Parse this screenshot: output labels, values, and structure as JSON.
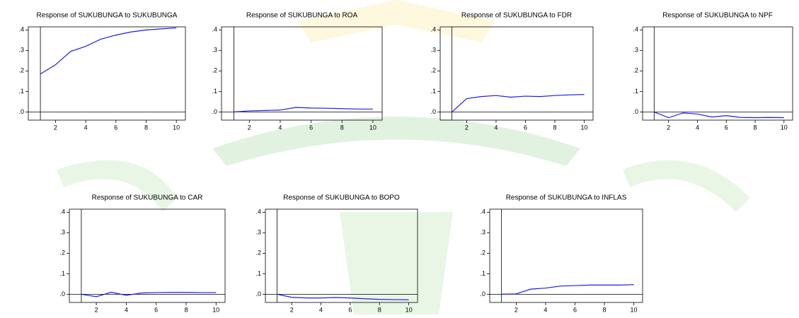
{
  "chart_data": [
    {
      "type": "line",
      "title": "Response of SUKUBUNGA to SUKUBUNGA",
      "x": [
        1,
        2,
        3,
        4,
        5,
        6,
        7,
        8,
        9,
        10
      ],
      "values": [
        0.185,
        0.23,
        0.295,
        0.32,
        0.355,
        0.375,
        0.39,
        0.4,
        0.405,
        0.41
      ],
      "color": "#1c1cf0",
      "xlim": [
        0.2,
        10.6
      ],
      "ylim": [
        -0.04,
        0.415
      ],
      "xticks": [
        2,
        4,
        6,
        8,
        10
      ],
      "yticks": [
        {
          "value": 0,
          "label": ".0"
        },
        {
          "value": 0.1,
          "label": ".1"
        },
        {
          "value": 0.2,
          "label": ".2"
        },
        {
          "value": 0.3,
          "label": ".3"
        },
        {
          "value": 0.4,
          "label": ".4"
        }
      ]
    },
    {
      "type": "line",
      "title": "Response of SUKUBUNGA to ROA",
      "x": [
        1,
        2,
        3,
        4,
        5,
        6,
        7,
        8,
        9,
        10
      ],
      "values": [
        0,
        0.005,
        0.007,
        0.009,
        0.022,
        0.019,
        0.018,
        0.016,
        0.014,
        0.014
      ],
      "color": "#1c1cf0",
      "xlim": [
        0.2,
        10.6
      ],
      "ylim": [
        -0.04,
        0.415
      ],
      "xticks": [
        2,
        4,
        6,
        8,
        10
      ],
      "yticks": [
        {
          "value": 0,
          "label": ".0"
        },
        {
          "value": 0.1,
          "label": ".1"
        },
        {
          "value": 0.2,
          "label": ".2"
        },
        {
          "value": 0.3,
          "label": ".3"
        },
        {
          "value": 0.4,
          "label": ".4"
        }
      ]
    },
    {
      "type": "line",
      "title": "Response of SUKUBUNGA to FDR",
      "x": [
        1,
        2,
        3,
        4,
        5,
        6,
        7,
        8,
        9,
        10
      ],
      "values": [
        0,
        0.065,
        0.075,
        0.08,
        0.072,
        0.077,
        0.075,
        0.08,
        0.083,
        0.085
      ],
      "color": "#1c1cf0",
      "xlim": [
        0.2,
        10.6
      ],
      "ylim": [
        -0.04,
        0.415
      ],
      "xticks": [
        2,
        4,
        6,
        8,
        10
      ],
      "yticks": [
        {
          "value": 0,
          "label": ".0"
        },
        {
          "value": 0.1,
          "label": ".1"
        },
        {
          "value": 0.2,
          "label": ".2"
        },
        {
          "value": 0.3,
          "label": ".3"
        },
        {
          "value": 0.4,
          "label": ".4"
        }
      ]
    },
    {
      "type": "line",
      "title": "Response of SUKUBUNGA to NPF",
      "x": [
        1,
        2,
        3,
        4,
        5,
        6,
        7,
        8,
        9,
        10
      ],
      "values": [
        0,
        -0.028,
        -0.005,
        -0.01,
        -0.025,
        -0.018,
        -0.027,
        -0.028,
        -0.027,
        -0.028
      ],
      "color": "#1c1cf0",
      "xlim": [
        0.2,
        10.6
      ],
      "ylim": [
        -0.04,
        0.415
      ],
      "xticks": [
        2,
        4,
        6,
        8,
        10
      ],
      "yticks": [
        {
          "value": 0,
          "label": ".0"
        },
        {
          "value": 0.1,
          "label": ".1"
        },
        {
          "value": 0.2,
          "label": ".2"
        },
        {
          "value": 0.3,
          "label": ".3"
        },
        {
          "value": 0.4,
          "label": ".4"
        }
      ]
    },
    {
      "type": "line",
      "title": "Response of SUKUBUNGA to CAR",
      "x": [
        1,
        2,
        3,
        4,
        5,
        6,
        7,
        8,
        9,
        10
      ],
      "values": [
        0,
        -0.012,
        0.01,
        -0.005,
        0.006,
        0.008,
        0.009,
        0.009,
        0.008,
        0.008
      ],
      "color": "#1c1cf0",
      "xlim": [
        0.2,
        10.6
      ],
      "ylim": [
        -0.04,
        0.415
      ],
      "xticks": [
        2,
        4,
        6,
        8,
        10
      ],
      "yticks": [
        {
          "value": 0,
          "label": ".0"
        },
        {
          "value": 0.1,
          "label": ".1"
        },
        {
          "value": 0.2,
          "label": ".2"
        },
        {
          "value": 0.3,
          "label": ".3"
        },
        {
          "value": 0.4,
          "label": ".4"
        }
      ]
    },
    {
      "type": "line",
      "title": "Response of SUKUBUNGA to BOPO",
      "x": [
        1,
        2,
        3,
        4,
        5,
        6,
        7,
        8,
        9,
        10
      ],
      "values": [
        0,
        -0.015,
        -0.018,
        -0.018,
        -0.016,
        -0.018,
        -0.022,
        -0.025,
        -0.026,
        -0.027
      ],
      "color": "#1c1cf0",
      "xlim": [
        0.2,
        10.6
      ],
      "ylim": [
        -0.04,
        0.415
      ],
      "xticks": [
        2,
        4,
        6,
        8,
        10
      ],
      "yticks": [
        {
          "value": 0,
          "label": ".0"
        },
        {
          "value": 0.1,
          "label": ".1"
        },
        {
          "value": 0.2,
          "label": ".2"
        },
        {
          "value": 0.3,
          "label": ".3"
        },
        {
          "value": 0.4,
          "label": ".4"
        }
      ]
    },
    {
      "type": "line",
      "title": "Response of SUKUBUNGA to INFLAS",
      "x": [
        1,
        2,
        3,
        4,
        5,
        6,
        7,
        8,
        9,
        10
      ],
      "values": [
        0,
        0.002,
        0.025,
        0.03,
        0.04,
        0.042,
        0.045,
        0.045,
        0.045,
        0.047
      ],
      "color": "#1c1cf0",
      "xlim": [
        0.2,
        10.6
      ],
      "ylim": [
        -0.04,
        0.415
      ],
      "xticks": [
        2,
        4,
        6,
        8,
        10
      ],
      "yticks": [
        {
          "value": 0,
          "label": ".0"
        },
        {
          "value": 0.1,
          "label": ".1"
        },
        {
          "value": 0.2,
          "label": ".2"
        },
        {
          "value": 0.3,
          "label": ".3"
        },
        {
          "value": 0.4,
          "label": ".4"
        }
      ]
    }
  ]
}
